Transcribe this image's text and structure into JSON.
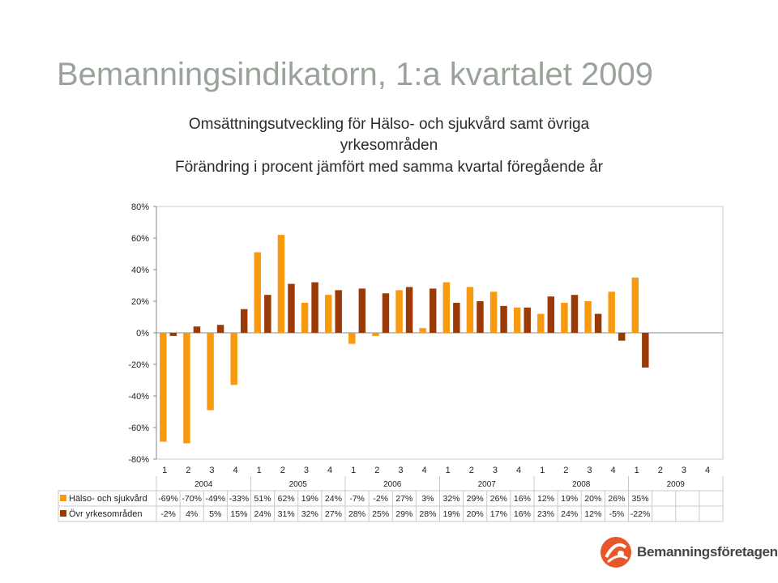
{
  "slide": {
    "title": "Bemanningsindikatorn, 1:a kvartalet 2009"
  },
  "logo": {
    "name": "Bemanningsföretagen"
  },
  "chart_data": {
    "type": "bar",
    "title_lines": [
      "Omsättningsutveckling för Hälso- och sjukvård samt övriga",
      "yrkesområden",
      "Förändring i procent jämfört med samma kvartal föregående år"
    ],
    "categories": [
      "1",
      "2",
      "3",
      "4",
      "1",
      "2",
      "3",
      "4",
      "1",
      "2",
      "3",
      "4",
      "1",
      "2",
      "3",
      "4",
      "1",
      "2",
      "3",
      "4",
      "1",
      "2",
      "3",
      "4"
    ],
    "years": [
      "2004",
      "2005",
      "2006",
      "2007",
      "2008",
      "2009"
    ],
    "ylim": [
      -80,
      80
    ],
    "yticks": [
      80,
      60,
      40,
      20,
      0,
      -20,
      -40,
      -60,
      -80
    ],
    "ytick_labels": [
      "80%",
      "60%",
      "40%",
      "20%",
      "0%",
      "-20%",
      "-40%",
      "-60%",
      "-80%"
    ],
    "grid": false,
    "series": [
      {
        "name": "Hälso- och sjukvård",
        "color": "#f79a0f",
        "values": [
          -69,
          -70,
          -49,
          -33,
          51,
          62,
          19,
          24,
          -7,
          -2,
          27,
          3,
          32,
          29,
          26,
          16,
          12,
          19,
          20,
          26,
          35,
          null,
          null,
          null
        ],
        "labels": [
          "-69%",
          "-70%",
          "-49%",
          "-33%",
          "51%",
          "62%",
          "19%",
          "24%",
          "-7%",
          "-2%",
          "27%",
          "3%",
          "32%",
          "29%",
          "26%",
          "16%",
          "12%",
          "19%",
          "20%",
          "26%",
          "35%",
          "",
          "",
          ""
        ]
      },
      {
        "name": "Övr yrkesområden",
        "color": "#9a3a06",
        "values": [
          -2,
          4,
          5,
          15,
          24,
          31,
          32,
          27,
          28,
          25,
          29,
          28,
          19,
          20,
          17,
          16,
          23,
          24,
          12,
          -5,
          -22,
          null,
          null,
          null
        ],
        "labels": [
          "-2%",
          "4%",
          "5%",
          "15%",
          "24%",
          "31%",
          "32%",
          "27%",
          "28%",
          "25%",
          "29%",
          "28%",
          "19%",
          "20%",
          "17%",
          "16%",
          "23%",
          "24%",
          "12%",
          "-5%",
          "-22%",
          "",
          "",
          ""
        ]
      }
    ]
  }
}
